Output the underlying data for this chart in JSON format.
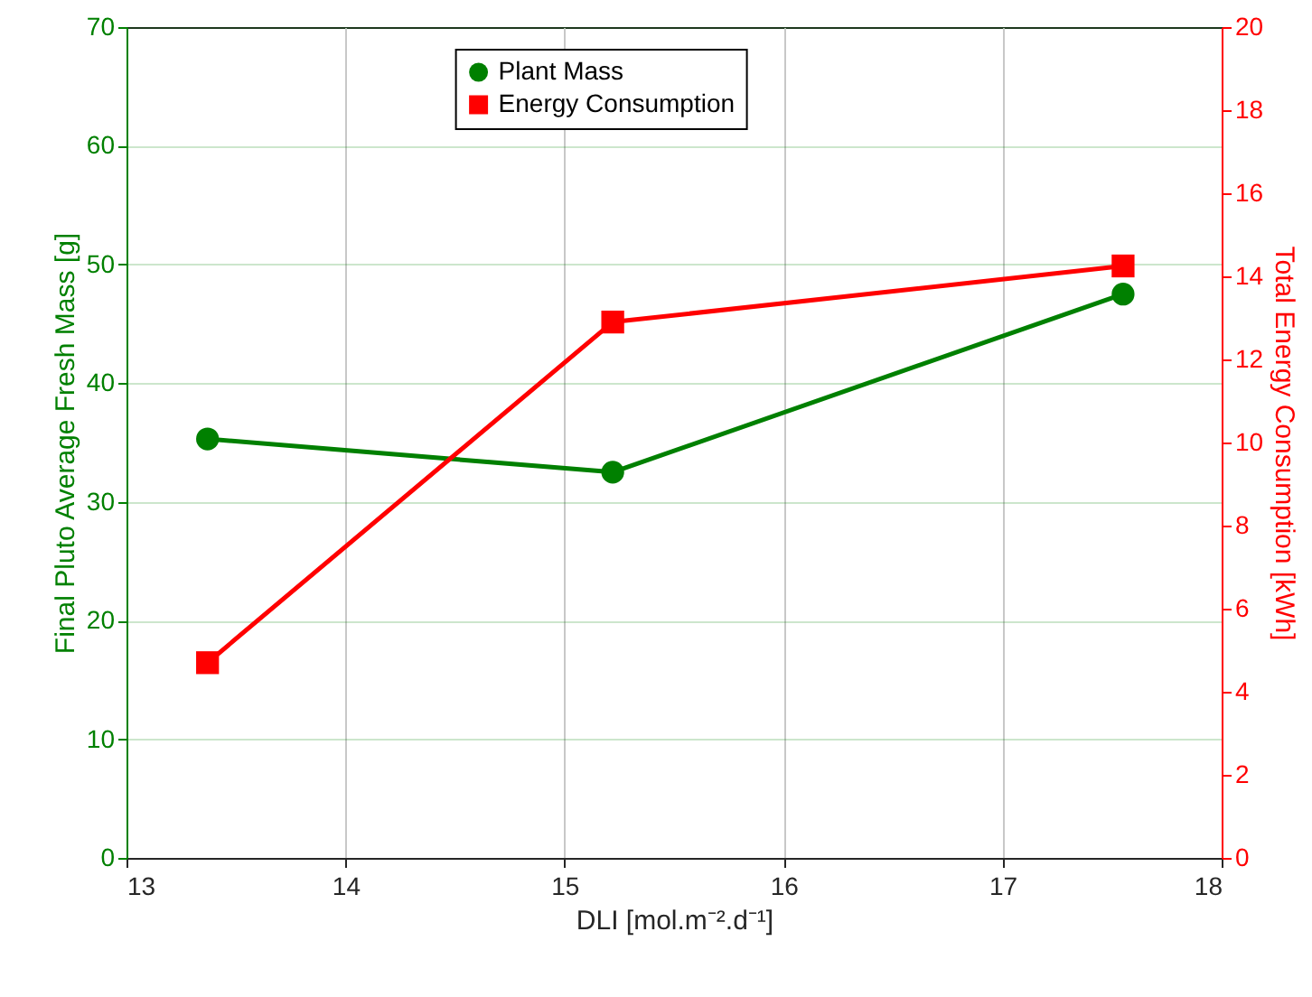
{
  "chart_data": {
    "type": "line",
    "xlabel": "DLI [mol.m⁻².d⁻¹]",
    "ylabel": "Final Pluto Average Fresh Mass [g]",
    "y2label": "Total Energy Consumption [kWh]",
    "x": [
      13.37,
      15.22,
      17.55
    ],
    "series": [
      {
        "name": "Plant Mass",
        "color": "#008000",
        "marker": "circle",
        "values": [
          35.3,
          32.5,
          47.5
        ]
      },
      {
        "name": "Energy Consumption",
        "color": "#ff0000",
        "marker": "square",
        "axis": "y2",
        "values": [
          4.7,
          12.9,
          14.25
        ]
      }
    ],
    "xlim": [
      13,
      18
    ],
    "xticks": [
      13,
      14,
      15,
      16,
      17,
      18
    ],
    "ylim": [
      0,
      70
    ],
    "yticks": [
      0,
      10,
      20,
      30,
      40,
      50,
      60,
      70
    ],
    "y2lim": [
      0,
      20
    ],
    "y2ticks": [
      0,
      2,
      4,
      6,
      8,
      10,
      12,
      14,
      16,
      18,
      20
    ],
    "grid": true,
    "legend": "top"
  }
}
